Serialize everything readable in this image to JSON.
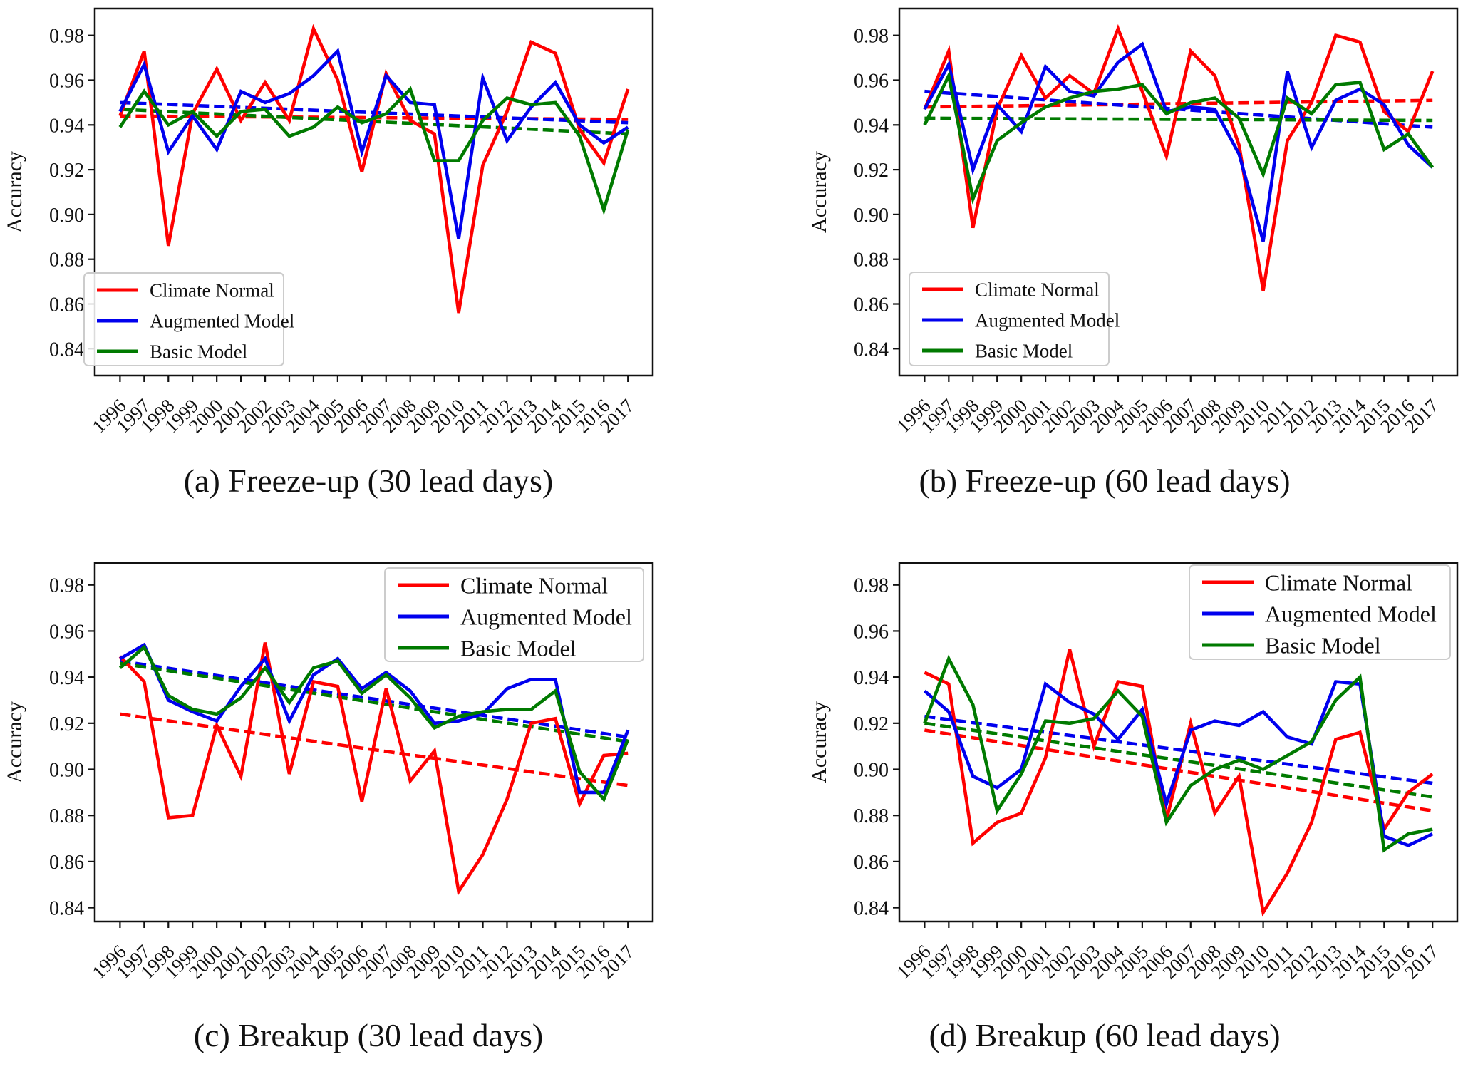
{
  "figure_title": "",
  "ylabel": "Accuracy",
  "legend_labels": [
    "Climate Normal",
    "Augmented Model",
    "Basic Model"
  ],
  "series_colors": {
    "climate_normal": "#ff0000",
    "augmented_model": "#0000ee",
    "basic_model": "#007a00"
  },
  "chart_data": [
    {
      "id": "a",
      "type": "line",
      "caption": "(a) Freeze-up (30 lead days)",
      "ylabel": "Accuracy",
      "legend_position": "lower-left",
      "ylim": [
        0.828,
        0.992
      ],
      "yticks": [
        0.84,
        0.86,
        0.88,
        0.9,
        0.92,
        0.94,
        0.96,
        0.98
      ],
      "years": [
        1996,
        1997,
        1998,
        1999,
        2000,
        2001,
        2002,
        2003,
        2004,
        2005,
        2006,
        2007,
        2008,
        2009,
        2010,
        2011,
        2012,
        2013,
        2014,
        2015,
        2016,
        2017
      ],
      "series": [
        {
          "name": "Climate Normal",
          "color": "#ff0000",
          "values": [
            0.944,
            0.973,
            0.886,
            0.945,
            0.965,
            0.942,
            0.959,
            0.942,
            0.983,
            0.96,
            0.919,
            0.963,
            0.942,
            0.936,
            0.856,
            0.922,
            0.946,
            0.977,
            0.972,
            0.938,
            0.923,
            0.956
          ]
        },
        {
          "name": "Augmented Model",
          "color": "#0000ee",
          "values": [
            0.946,
            0.967,
            0.928,
            0.944,
            0.929,
            0.955,
            0.95,
            0.954,
            0.962,
            0.973,
            0.928,
            0.962,
            0.95,
            0.949,
            0.889,
            0.961,
            0.933,
            0.948,
            0.959,
            0.94,
            0.932,
            0.939
          ]
        },
        {
          "name": "Basic Model",
          "color": "#007a00",
          "values": [
            0.939,
            0.955,
            0.94,
            0.946,
            0.935,
            0.946,
            0.947,
            0.935,
            0.939,
            0.948,
            0.941,
            0.945,
            0.956,
            0.924,
            0.924,
            0.942,
            0.952,
            0.949,
            0.95,
            0.935,
            0.902,
            0.938
          ]
        }
      ],
      "trend_lines": [
        {
          "name": "Climate Normal trend",
          "color": "#ff0000",
          "start": 0.944,
          "end": 0.9425
        },
        {
          "name": "Augmented Model trend",
          "color": "#0000ee",
          "start": 0.95,
          "end": 0.941
        },
        {
          "name": "Basic Model trend",
          "color": "#007a00",
          "start": 0.947,
          "end": 0.936
        }
      ]
    },
    {
      "id": "b",
      "type": "line",
      "caption": "(b) Freeze-up (60 lead days)",
      "ylabel": "Accuracy",
      "legend_position": "lower-left",
      "ylim": [
        0.828,
        0.992
      ],
      "yticks": [
        0.84,
        0.86,
        0.88,
        0.9,
        0.92,
        0.94,
        0.96,
        0.98
      ],
      "years": [
        1996,
        1997,
        1998,
        1999,
        2000,
        2001,
        2002,
        2003,
        2004,
        2005,
        2006,
        2007,
        2008,
        2009,
        2010,
        2011,
        2012,
        2013,
        2014,
        2015,
        2016,
        2017
      ],
      "series": [
        {
          "name": "Climate Normal",
          "color": "#ff0000",
          "values": [
            0.947,
            0.973,
            0.894,
            0.947,
            0.971,
            0.952,
            0.962,
            0.954,
            0.983,
            0.955,
            0.926,
            0.973,
            0.962,
            0.931,
            0.866,
            0.933,
            0.95,
            0.98,
            0.977,
            0.946,
            0.937,
            0.964
          ]
        },
        {
          "name": "Augmented Model",
          "color": "#0000ee",
          "values": [
            0.947,
            0.967,
            0.92,
            0.949,
            0.937,
            0.966,
            0.955,
            0.953,
            0.968,
            0.976,
            0.946,
            0.948,
            0.947,
            0.927,
            0.888,
            0.964,
            0.93,
            0.951,
            0.956,
            0.949,
            0.931,
            0.921
          ]
        },
        {
          "name": "Basic Model",
          "color": "#007a00",
          "values": [
            0.94,
            0.962,
            0.907,
            0.933,
            0.941,
            0.948,
            0.952,
            0.955,
            0.956,
            0.958,
            0.945,
            0.95,
            0.952,
            0.943,
            0.918,
            0.952,
            0.945,
            0.958,
            0.959,
            0.929,
            0.936,
            0.921
          ]
        }
      ],
      "trend_lines": [
        {
          "name": "Climate Normal trend",
          "color": "#ff0000",
          "start": 0.948,
          "end": 0.951
        },
        {
          "name": "Augmented Model trend",
          "color": "#0000ee",
          "start": 0.955,
          "end": 0.939
        },
        {
          "name": "Basic Model trend",
          "color": "#007a00",
          "start": 0.943,
          "end": 0.942
        }
      ]
    },
    {
      "id": "c",
      "type": "line",
      "caption": "(c) Breakup (30 lead days)",
      "ylabel": "Accuracy",
      "legend_position": "upper-right",
      "ylim": [
        0.834,
        0.9895
      ],
      "yticks": [
        0.84,
        0.86,
        0.88,
        0.9,
        0.92,
        0.94,
        0.96,
        0.98
      ],
      "years": [
        1996,
        1997,
        1998,
        1999,
        2000,
        2001,
        2002,
        2003,
        2004,
        2005,
        2006,
        2007,
        2008,
        2009,
        2010,
        2011,
        2012,
        2013,
        2014,
        2015,
        2016,
        2017
      ],
      "series": [
        {
          "name": "Climate Normal",
          "color": "#ff0000",
          "values": [
            0.949,
            0.938,
            0.879,
            0.88,
            0.919,
            0.897,
            0.955,
            0.898,
            0.938,
            0.936,
            0.886,
            0.935,
            0.895,
            0.908,
            0.847,
            0.863,
            0.887,
            0.92,
            0.922,
            0.885,
            0.906,
            0.907
          ]
        },
        {
          "name": "Augmented Model",
          "color": "#0000ee",
          "values": [
            0.948,
            0.954,
            0.93,
            0.925,
            0.921,
            0.936,
            0.948,
            0.921,
            0.941,
            0.948,
            0.935,
            0.942,
            0.934,
            0.92,
            0.921,
            0.924,
            0.935,
            0.939,
            0.939,
            0.89,
            0.89,
            0.917
          ]
        },
        {
          "name": "Basic Model",
          "color": "#007a00",
          "values": [
            0.944,
            0.953,
            0.932,
            0.926,
            0.924,
            0.931,
            0.944,
            0.929,
            0.944,
            0.947,
            0.933,
            0.941,
            0.931,
            0.918,
            0.923,
            0.925,
            0.926,
            0.926,
            0.934,
            0.899,
            0.887,
            0.913
          ]
        }
      ],
      "trend_lines": [
        {
          "name": "Climate Normal trend",
          "color": "#ff0000",
          "start": 0.924,
          "end": 0.893
        },
        {
          "name": "Augmented Model trend",
          "color": "#0000ee",
          "start": 0.947,
          "end": 0.914
        },
        {
          "name": "Basic Model trend",
          "color": "#007a00",
          "start": 0.946,
          "end": 0.912
        }
      ]
    },
    {
      "id": "d",
      "type": "line",
      "caption": "(d) Breakup (60 lead days)",
      "ylabel": "Accuracy",
      "legend_position": "upper-right",
      "ylim": [
        0.834,
        0.9895
      ],
      "yticks": [
        0.84,
        0.86,
        0.88,
        0.9,
        0.92,
        0.94,
        0.96,
        0.98
      ],
      "years": [
        1996,
        1997,
        1998,
        1999,
        2000,
        2001,
        2002,
        2003,
        2004,
        2005,
        2006,
        2007,
        2008,
        2009,
        2010,
        2011,
        2012,
        2013,
        2014,
        2015,
        2016,
        2017
      ],
      "series": [
        {
          "name": "Climate Normal",
          "color": "#ff0000",
          "values": [
            0.942,
            0.937,
            0.868,
            0.877,
            0.881,
            0.905,
            0.952,
            0.91,
            0.938,
            0.936,
            0.878,
            0.92,
            0.881,
            0.897,
            0.838,
            0.855,
            0.877,
            0.913,
            0.916,
            0.874,
            0.89,
            0.898
          ]
        },
        {
          "name": "Augmented Model",
          "color": "#0000ee",
          "values": [
            0.934,
            0.925,
            0.897,
            0.892,
            0.9,
            0.937,
            0.929,
            0.924,
            0.913,
            0.926,
            0.885,
            0.917,
            0.921,
            0.919,
            0.925,
            0.914,
            0.911,
            0.938,
            0.937,
            0.871,
            0.867,
            0.872
          ]
        },
        {
          "name": "Basic Model",
          "color": "#007a00",
          "values": [
            0.92,
            0.948,
            0.928,
            0.882,
            0.898,
            0.921,
            0.92,
            0.922,
            0.934,
            0.923,
            0.877,
            0.893,
            0.9,
            0.904,
            0.9,
            0.906,
            0.912,
            0.93,
            0.94,
            0.865,
            0.872,
            0.874
          ]
        }
      ],
      "trend_lines": [
        {
          "name": "Climate Normal trend",
          "color": "#ff0000",
          "start": 0.917,
          "end": 0.882
        },
        {
          "name": "Augmented Model trend",
          "color": "#0000ee",
          "start": 0.923,
          "end": 0.894
        },
        {
          "name": "Basic Model trend",
          "color": "#007a00",
          "start": 0.92,
          "end": 0.888
        }
      ]
    }
  ]
}
